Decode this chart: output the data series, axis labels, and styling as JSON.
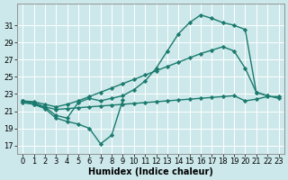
{
  "background_color": "#cce8ea",
  "grid_color": "#ffffff",
  "line_color": "#1a7a6e",
  "marker_style": "D",
  "marker_size": 2.2,
  "line_width": 1.0,
  "xlabel": "Humidex (Indice chaleur)",
  "xlabel_fontsize": 7,
  "tick_fontsize": 6,
  "xlim": [
    -0.5,
    23.5
  ],
  "ylim": [
    16,
    33.5
  ],
  "yticks": [
    17,
    19,
    21,
    23,
    25,
    27,
    29,
    31
  ],
  "xticks": [
    0,
    1,
    2,
    3,
    4,
    5,
    6,
    7,
    8,
    9,
    10,
    11,
    12,
    13,
    14,
    15,
    16,
    17,
    18,
    19,
    20,
    21,
    22,
    23
  ],
  "series_data": {
    "line1_x": [
      0,
      1,
      2,
      3,
      4,
      5,
      6,
      7,
      8,
      9,
      10,
      11,
      12,
      13,
      14,
      15,
      16,
      17,
      18,
      19,
      20,
      21,
      22
    ],
    "line1_y": [
      22.2,
      22.0,
      21.5,
      20.5,
      20.2,
      22.0,
      22.5,
      22.2,
      22.5,
      22.8,
      23.5,
      24.5,
      26.0,
      28.0,
      30.0,
      31.3,
      32.2,
      31.8,
      31.3,
      31.0,
      30.5,
      23.2,
      22.8
    ],
    "line2_x": [
      0,
      1,
      2,
      3,
      4,
      5,
      6,
      7,
      8,
      9,
      10,
      11,
      12,
      13,
      14,
      15,
      16,
      17,
      18,
      19,
      20,
      21,
      22,
      23
    ],
    "line2_y": [
      22.2,
      22.1,
      21.8,
      21.5,
      21.8,
      22.2,
      22.7,
      23.2,
      23.7,
      24.2,
      24.7,
      25.2,
      25.7,
      26.2,
      26.7,
      27.2,
      27.7,
      28.1,
      28.5,
      28.0,
      26.0,
      23.2,
      22.8,
      22.5
    ],
    "line3_x": [
      0,
      1,
      2,
      3,
      4,
      5,
      6,
      7,
      8,
      9
    ],
    "line3_y": [
      22.2,
      21.8,
      21.3,
      20.2,
      19.8,
      19.5,
      19.0,
      17.2,
      18.2,
      22.3
    ],
    "line4_x": [
      0,
      1,
      2,
      3,
      4,
      5,
      6,
      7,
      8,
      9,
      10,
      11,
      12,
      13,
      14,
      15,
      16,
      17,
      18,
      19,
      20,
      21,
      22,
      23
    ],
    "line4_y": [
      22.0,
      21.8,
      21.5,
      21.2,
      21.3,
      21.4,
      21.5,
      21.6,
      21.7,
      21.8,
      21.9,
      22.0,
      22.1,
      22.2,
      22.3,
      22.4,
      22.5,
      22.6,
      22.7,
      22.8,
      22.2,
      22.4,
      22.7,
      22.7
    ]
  }
}
